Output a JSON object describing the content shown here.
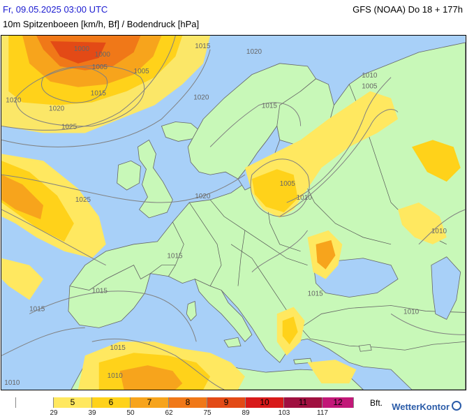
{
  "header": {
    "date": "Fr, 09.05.2025 03:00 UTC",
    "model": "GFS (NOAA) Do 18 + 177h",
    "variable": "10m Spitzenboeen [km/h, Bf] / Bodendruck [hPa]"
  },
  "colors": {
    "sea": "#a8d0f8",
    "land": "#c8f8b8",
    "bf5": "#ffe860",
    "bf6": "#ffd21a",
    "bf7": "#f7a41c",
    "bf8": "#f07818",
    "bf9": "#e34a16",
    "bf10": "#d81a1a",
    "bf11": "#a01040",
    "bf12": "#c21878",
    "isobar": "#808080",
    "border": "#555555"
  },
  "isobar_labels": [
    "1000",
    "1005",
    "1010",
    "1015",
    "1020",
    "1025"
  ],
  "legend": {
    "unit": "Bft.",
    "classes": [
      {
        "bf": "",
        "color": "#ffffff"
      },
      {
        "bf": "5",
        "color": "#ffe860"
      },
      {
        "bf": "6",
        "color": "#ffd21a"
      },
      {
        "bf": "7",
        "color": "#f7a41c"
      },
      {
        "bf": "8",
        "color": "#f07818"
      },
      {
        "bf": "9",
        "color": "#e34a16"
      },
      {
        "bf": "10",
        "color": "#d81a1a"
      },
      {
        "bf": "11",
        "color": "#a01040"
      },
      {
        "bf": "12",
        "color": "#c21878"
      }
    ],
    "kmh_ticks": [
      "29",
      "39",
      "50",
      "62",
      "75",
      "89",
      "103",
      "117"
    ]
  },
  "brand": "WetterKontor"
}
